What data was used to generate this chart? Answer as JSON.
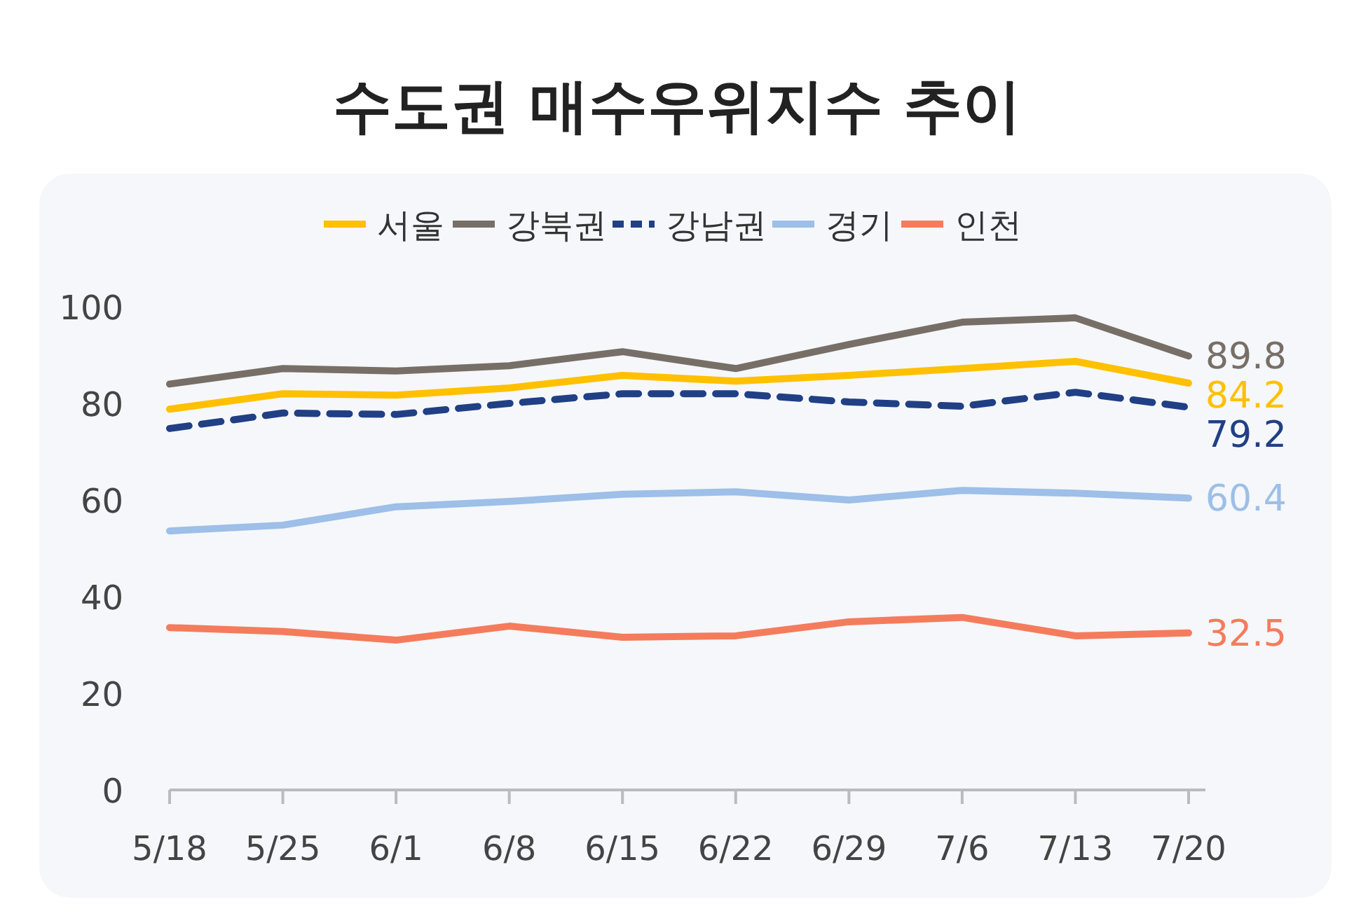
{
  "chart_data": {
    "type": "line",
    "title": "수도권 매수우위지수 추이",
    "categories": [
      "5/18",
      "5/25",
      "6/1",
      "6/8",
      "6/15",
      "6/22",
      "6/29",
      "7/6",
      "7/13",
      "7/20"
    ],
    "series": [
      {
        "name": "서울",
        "color": "#ffc000",
        "values": [
          78.8,
          82,
          81.7,
          83.2,
          85.8,
          84.6,
          85.8,
          87.2,
          88.7,
          84.2
        ],
        "value_labels": [
          null,
          null,
          null,
          null,
          null,
          null,
          null,
          null,
          null,
          "84.2"
        ]
      },
      {
        "name": "강북권",
        "color": "#776f67",
        "values": [
          84,
          87.2,
          86.7,
          87.8,
          90.7,
          87.2,
          92.2,
          96.8,
          97.7,
          89.8
        ],
        "value_labels": [
          null,
          null,
          null,
          null,
          null,
          null,
          null,
          null,
          null,
          "89.8"
        ]
      },
      {
        "name": "강남권",
        "color": "#203f85",
        "line_style": "dashed",
        "values": [
          74.8,
          78,
          77.7,
          80,
          82,
          82,
          80.3,
          79.4,
          82.3,
          79.2
        ],
        "value_labels": [
          null,
          null,
          null,
          null,
          null,
          null,
          null,
          null,
          null,
          "79.2"
        ]
      },
      {
        "name": "경기",
        "color": "#9dbfe8",
        "values": [
          53.6,
          54.8,
          58.6,
          59.7,
          61.2,
          61.7,
          60,
          62,
          61.4,
          60.4
        ],
        "value_labels": [
          null,
          null,
          null,
          null,
          null,
          null,
          null,
          null,
          null,
          "60.4"
        ]
      },
      {
        "name": "인천",
        "color": "#f47c5c",
        "values": [
          33.6,
          32.8,
          31,
          33.9,
          31.6,
          31.9,
          34.8,
          35.7,
          31.9,
          32.5
        ],
        "value_labels": [
          null,
          null,
          null,
          null,
          null,
          null,
          null,
          null,
          null,
          "32.5"
        ]
      }
    ],
    "ylim": [
      0,
      100
    ],
    "yticks": [
      0,
      20,
      40,
      60,
      80,
      100
    ],
    "grid": false,
    "legend": "top",
    "line_style": "solid",
    "marker": "none"
  }
}
